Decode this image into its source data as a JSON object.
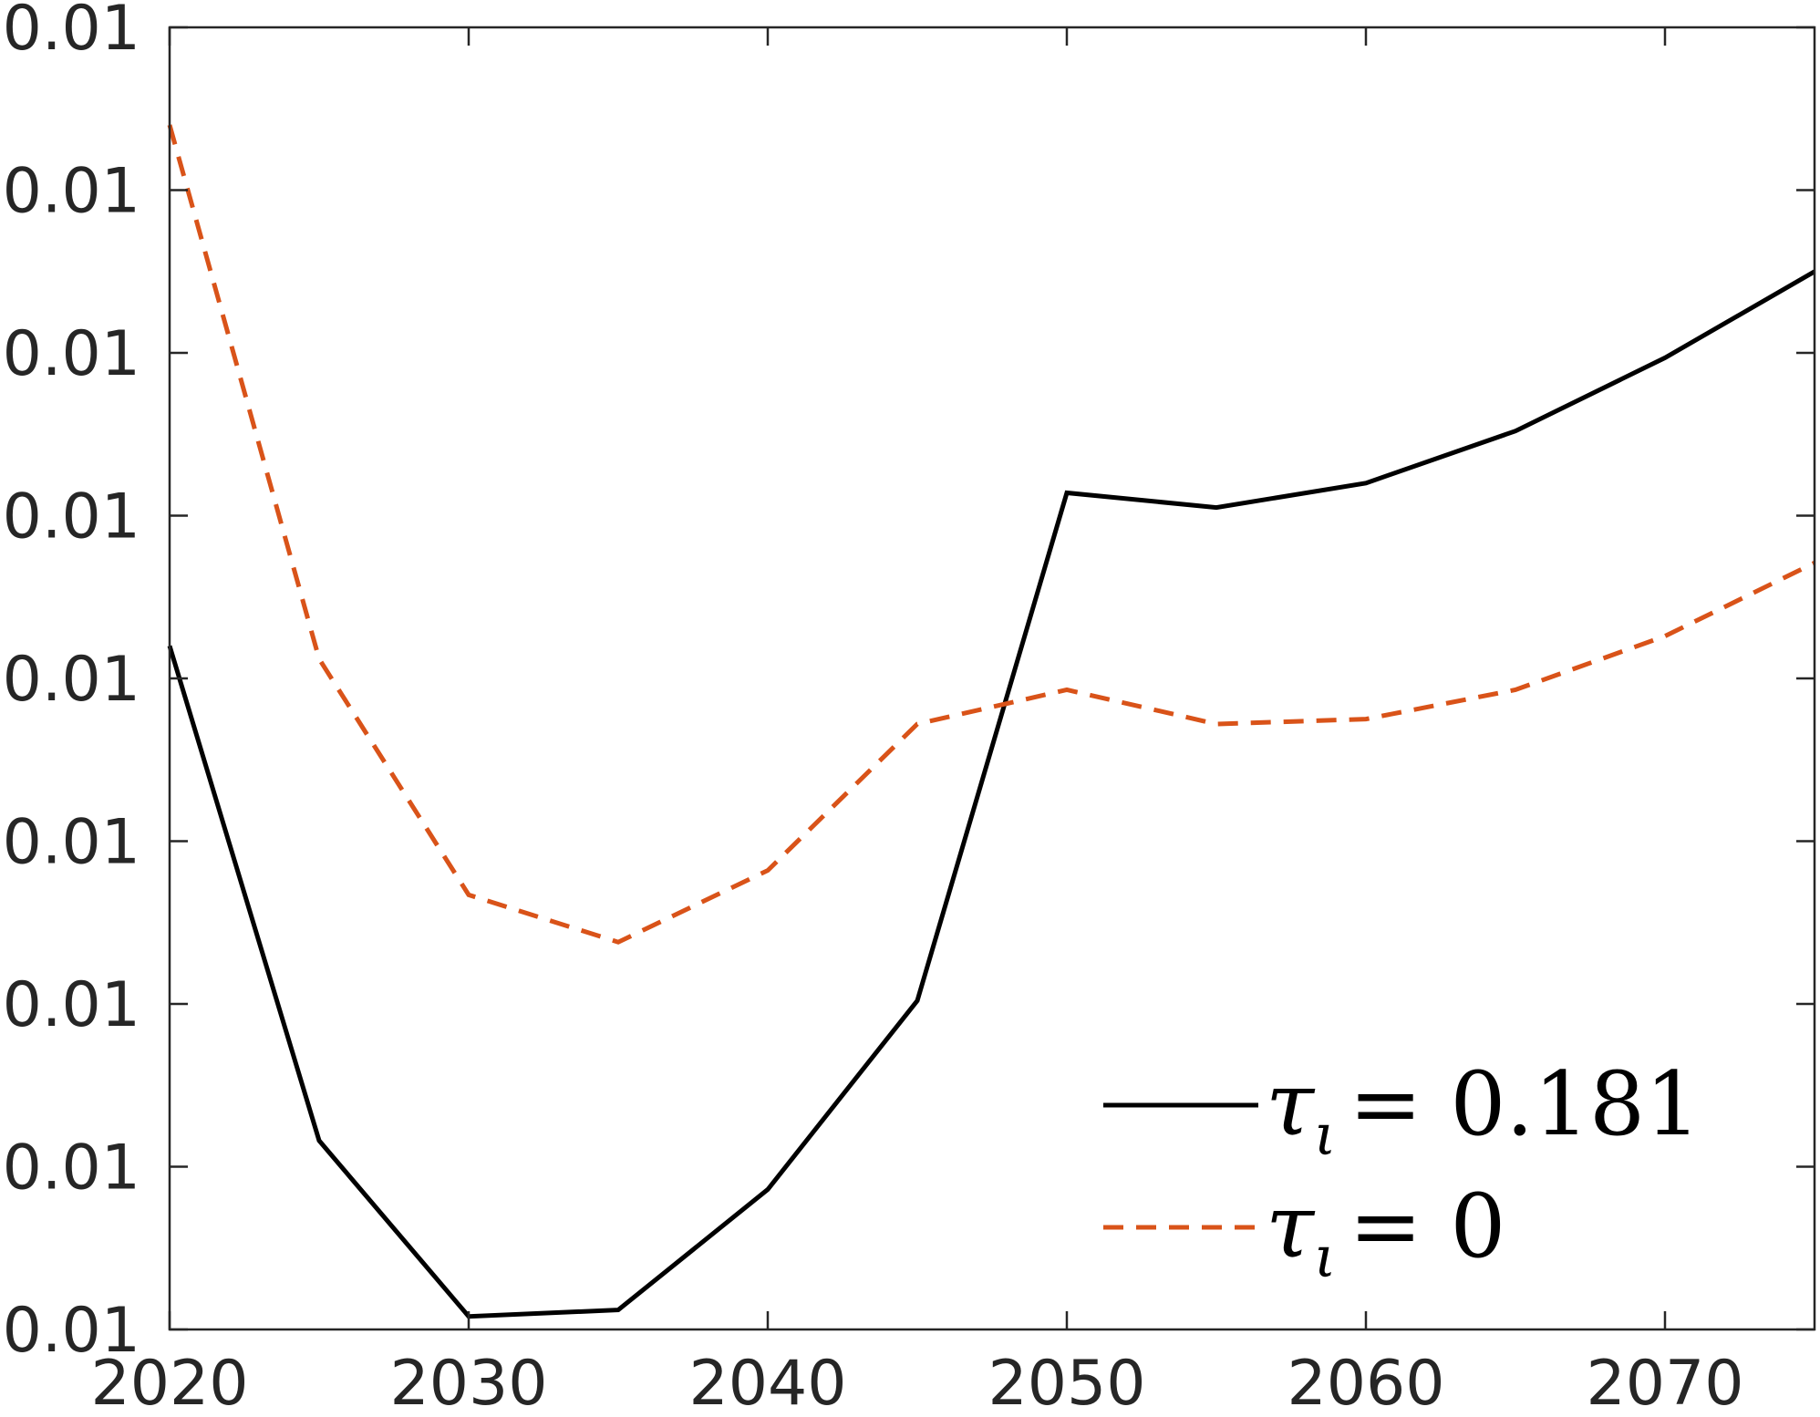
{
  "chart_data": {
    "type": "line",
    "title": "",
    "xlabel": "",
    "ylabel": "",
    "xlim": [
      2020,
      2075
    ],
    "ylim": [
      0,
      8
    ],
    "grid": false,
    "legend_position": "bottom-right",
    "x_ticks": [
      2020,
      2030,
      2040,
      2050,
      2060,
      2070
    ],
    "x_tick_labels": [
      "2020",
      "2030",
      "2040",
      "2050",
      "2060",
      "2070"
    ],
    "y_ticks": [
      0,
      1,
      2,
      3,
      4,
      5,
      6,
      7,
      8
    ],
    "y_tick_labels": [
      "0.01",
      "0.01",
      "0.01",
      "0.01",
      "0.01",
      "0.01",
      "0.01",
      "0.01",
      "0.01"
    ],
    "x": [
      2020,
      2025,
      2030,
      2035,
      2040,
      2045,
      2050,
      2055,
      2060,
      2065,
      2070,
      2075
    ],
    "series": [
      {
        "name": "τι = 0.181",
        "legend_symbol": "τ",
        "legend_subscript": "ι",
        "legend_value": "= 0.181",
        "color": "#000000",
        "dash": "solid",
        "values": [
          4.2,
          1.16,
          0.08,
          0.12,
          0.86,
          2.02,
          5.14,
          5.05,
          5.2,
          5.52,
          5.97,
          6.5
        ]
      },
      {
        "name": "τι = 0",
        "legend_symbol": "τ",
        "legend_subscript": "ι",
        "legend_value": "= 0",
        "color": "#D95319",
        "dash": "dashed",
        "values": [
          7.4,
          4.12,
          2.67,
          2.38,
          2.82,
          3.72,
          3.93,
          3.72,
          3.75,
          3.93,
          4.26,
          4.71
        ]
      }
    ]
  }
}
